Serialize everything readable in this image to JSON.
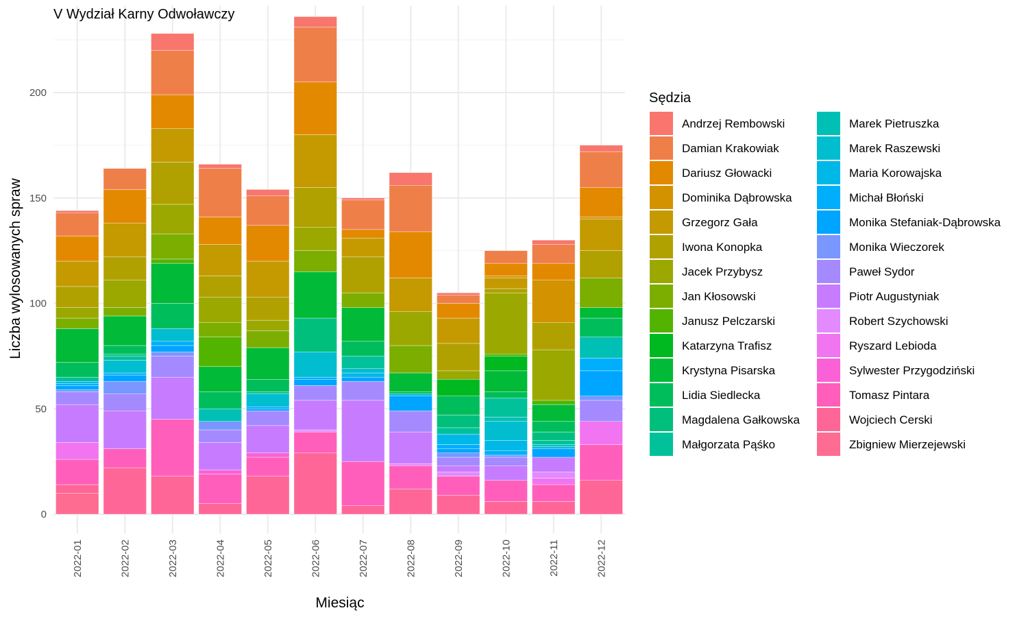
{
  "chart_data": {
    "type": "bar",
    "stacked": true,
    "title": "V Wydział Karny Odwoławczy",
    "xlabel": "Miesiąc",
    "ylabel": "Liczba wylosowanych spraw",
    "ylim": [
      -10,
      240
    ],
    "yticks": [
      0,
      50,
      100,
      150,
      200
    ],
    "grid": true,
    "legend_title": "Sędzia",
    "legend_position": "right",
    "categories": [
      "2022-01",
      "2022-02",
      "2022-03",
      "2022-04",
      "2022-05",
      "2022-06",
      "2022-07",
      "2022-08",
      "2022-09",
      "2022-10",
      "2022-11",
      "2022-12"
    ],
    "series": [
      {
        "name": "Andrzej Rembowski",
        "color": "#F8766D",
        "values": [
          1,
          0,
          8,
          2,
          3,
          5,
          1,
          6,
          1,
          0,
          2,
          3
        ]
      },
      {
        "name": "Damian Krakowiak",
        "color": "#EF7F49",
        "values": [
          11,
          10,
          21,
          23,
          14,
          26,
          14,
          22,
          4,
          6,
          9,
          17
        ]
      },
      {
        "name": "Dariusz Głowacki",
        "color": "#E38900",
        "values": [
          12,
          16,
          16,
          13,
          17,
          25,
          4,
          22,
          7,
          6,
          8,
          14
        ]
      },
      {
        "name": "Dominika Dąbrowska",
        "color": "#D39200",
        "values": [
          0,
          0,
          0,
          0,
          0,
          0,
          0,
          0,
          0,
          1,
          20,
          1
        ]
      },
      {
        "name": "Grzegorz Gała",
        "color": "#C49A00",
        "values": [
          12,
          16,
          16,
          15,
          17,
          25,
          9,
          16,
          12,
          5,
          0,
          15
        ]
      },
      {
        "name": "Iwona Konopka",
        "color": "#B0A100",
        "values": [
          10,
          11,
          20,
          10,
          11,
          19,
          17,
          0,
          13,
          2,
          13,
          13
        ]
      },
      {
        "name": "Jacek Przybysz",
        "color": "#9AA800",
        "values": [
          5,
          13,
          14,
          12,
          5,
          11,
          0,
          16,
          4,
          29,
          24,
          0
        ]
      },
      {
        "name": "Jan Kłosowski",
        "color": "#7CAE00",
        "values": [
          5,
          4,
          12,
          7,
          8,
          10,
          7,
          13,
          0,
          0,
          0,
          14
        ]
      },
      {
        "name": "Janusz Pelczarski",
        "color": "#53B400",
        "values": [
          0,
          0,
          2,
          14,
          0,
          0,
          0,
          0,
          0,
          1,
          2,
          0
        ]
      },
      {
        "name": "Katarzyna Trafisz",
        "color": "#00B81F",
        "values": [
          0,
          0,
          0,
          0,
          0,
          0,
          0,
          0,
          8,
          7,
          0,
          0
        ]
      },
      {
        "name": "Krystyna Pisarska",
        "color": "#00BA38",
        "values": [
          16,
          14,
          19,
          12,
          15,
          22,
          16,
          9,
          0,
          10,
          8,
          5
        ]
      },
      {
        "name": "Lidia Siedlecka",
        "color": "#00BD5C",
        "values": [
          7,
          4,
          12,
          8,
          6,
          0,
          7,
          1,
          9,
          3,
          5,
          9
        ]
      },
      {
        "name": "Magdalena Gałkowska",
        "color": "#00BF7D",
        "values": [
          0,
          1,
          0,
          0,
          0,
          16,
          0,
          0,
          6,
          0,
          4,
          0
        ]
      },
      {
        "name": "Małgorzata Pąśko",
        "color": "#00C19A",
        "values": [
          2,
          2,
          0,
          0,
          1,
          0,
          6,
          0,
          3,
          9,
          2,
          0
        ]
      },
      {
        "name": "Marek Pietruszka",
        "color": "#00C0B5",
        "values": [
          0,
          0,
          0,
          6,
          0,
          0,
          0,
          0,
          0,
          2,
          1,
          10
        ]
      },
      {
        "name": "Marek Raszewski",
        "color": "#00BDD0",
        "values": [
          0,
          6,
          6,
          0,
          6,
          12,
          2,
          0,
          0,
          9,
          0,
          0
        ]
      },
      {
        "name": "Maria Korowajska",
        "color": "#00B8E7",
        "values": [
          1,
          0,
          0,
          0,
          0,
          0,
          2,
          1,
          5,
          5,
          1,
          0
        ]
      },
      {
        "name": "Michał Błoński",
        "color": "#00AFFC",
        "values": [
          1,
          1,
          2,
          0,
          1,
          1,
          0,
          0,
          2,
          2,
          0,
          6
        ]
      },
      {
        "name": "Monika Stefaniak-Dąbrowska",
        "color": "#00A5FF",
        "values": [
          2,
          3,
          3,
          0,
          1,
          3,
          2,
          7,
          2,
          0,
          4,
          12
        ]
      },
      {
        "name": "Monika Wieczorek",
        "color": "#7997FF",
        "values": [
          1,
          6,
          2,
          4,
          0,
          0,
          0,
          0,
          2,
          1,
          0,
          2
        ]
      },
      {
        "name": "Paweł Sydor",
        "color": "#A58AFF",
        "values": [
          6,
          8,
          10,
          6,
          7,
          7,
          9,
          10,
          4,
          4,
          0,
          10
        ]
      },
      {
        "name": "Piotr Augustyniak",
        "color": "#C77CFF",
        "values": [
          18,
          18,
          20,
          13,
          13,
          14,
          29,
          15,
          3,
          7,
          7,
          0
        ]
      },
      {
        "name": "Robert Szychowski",
        "color": "#E38AFF",
        "values": [
          0,
          0,
          0,
          0,
          0,
          1,
          0,
          1,
          2,
          0,
          3,
          0
        ]
      },
      {
        "name": "Ryszard Lebioda",
        "color": "#F174F0",
        "values": [
          8,
          0,
          0,
          0,
          0,
          0,
          0,
          0,
          0,
          0,
          3,
          11
        ]
      },
      {
        "name": "Sylwester Przygodziński",
        "color": "#FB61D7",
        "values": [
          0,
          0,
          0,
          2,
          2,
          0,
          0,
          0,
          0,
          0,
          0,
          0
        ]
      },
      {
        "name": "Tomasz Pintara",
        "color": "#FF5FBA",
        "values": [
          12,
          9,
          27,
          14,
          9,
          10,
          21,
          11,
          9,
          10,
          8,
          17
        ]
      },
      {
        "name": "Wojciech Cerski",
        "color": "#FF6698",
        "values": [
          4,
          22,
          18,
          5,
          18,
          29,
          4,
          12,
          9,
          6,
          6,
          16
        ]
      },
      {
        "name": "Zbigniew Mierzejewski",
        "color": "#FF6C91",
        "values": [
          10,
          0,
          0,
          0,
          0,
          0,
          0,
          0,
          0,
          0,
          0,
          0
        ]
      }
    ]
  }
}
